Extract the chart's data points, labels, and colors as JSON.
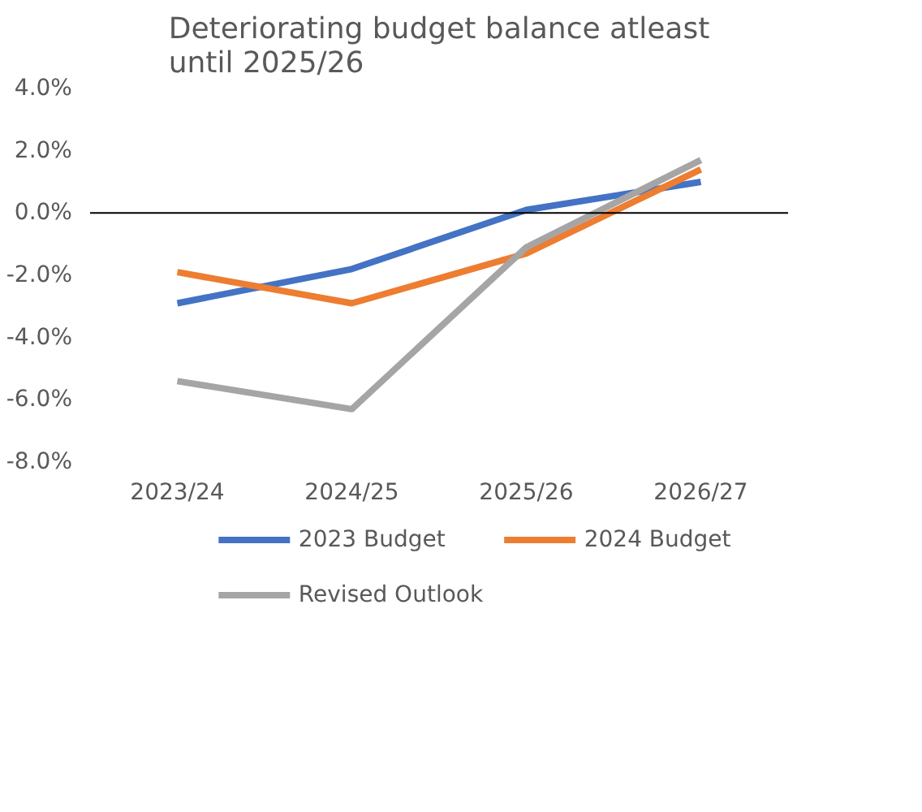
{
  "chart_data": {
    "type": "line",
    "title": "Deteriorating budget balance atleast until 2025/26",
    "categories": [
      "2023/24",
      "2024/25",
      "2025/26",
      "2026/27"
    ],
    "series": [
      {
        "name": "2023 Budget",
        "color": "#4472c4",
        "values": [
          -2.9,
          -1.8,
          0.1,
          1.0
        ]
      },
      {
        "name": "2024 Budget",
        "color": "#ed7d31",
        "values": [
          -1.9,
          -2.9,
          -1.3,
          1.4
        ]
      },
      {
        "name": "Revised Outlook",
        "color": "#a5a5a5",
        "values": [
          -5.4,
          -6.3,
          -1.1,
          1.7
        ]
      }
    ],
    "ylim": [
      -8.0,
      4.0
    ],
    "yticks": [
      {
        "value": -8,
        "label": "-8.0%"
      },
      {
        "value": -6,
        "label": "-6.0%"
      },
      {
        "value": -4,
        "label": "-4.0%"
      },
      {
        "value": -2,
        "label": "-2.0%"
      },
      {
        "value": 0,
        "label": "0.0%"
      },
      {
        "value": 2,
        "label": "2.0%"
      },
      {
        "value": 4,
        "label": "4.0%"
      }
    ],
    "ref_lines": [
      {
        "axis": "y",
        "value": 0,
        "color": "#000000"
      }
    ],
    "grid": false,
    "legend": "bottom",
    "marker": "none",
    "line_style": "solid"
  }
}
